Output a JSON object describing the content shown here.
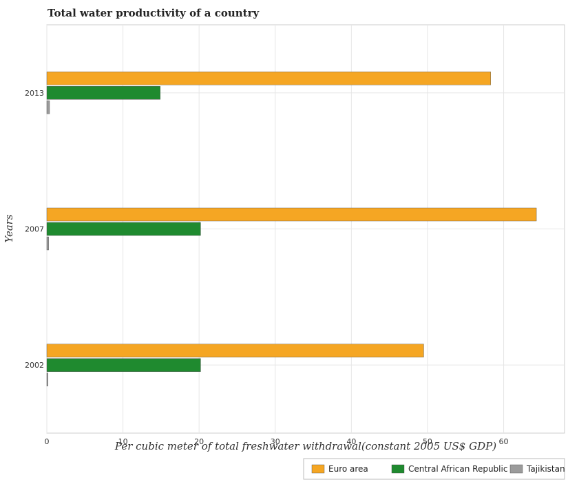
{
  "chart_data": {
    "type": "bar",
    "orientation": "horizontal",
    "title": "Total water productivity of a country",
    "xlabel": "Per cubic meter of total freshwater withdrawal(constant 2005 US$ GDP)",
    "ylabel": "Years",
    "categories": [
      "2002",
      "2007",
      "2013"
    ],
    "series": [
      {
        "name": "Euro area",
        "color": "#f5a623",
        "values": [
          49.5,
          64.3,
          58.3
        ]
      },
      {
        "name": "Central African Republic",
        "color": "#1f8a2f",
        "values": [
          20.2,
          20.2,
          14.9
        ]
      },
      {
        "name": "Tajikistan",
        "color": "#9b9b9b",
        "values": [
          0.15,
          0.24,
          0.36
        ]
      }
    ],
    "xlim": [
      0,
      68
    ],
    "xticks": [
      0,
      10,
      20,
      30,
      40,
      50,
      60
    ],
    "grid": true,
    "legend_position": "bottom-right"
  }
}
